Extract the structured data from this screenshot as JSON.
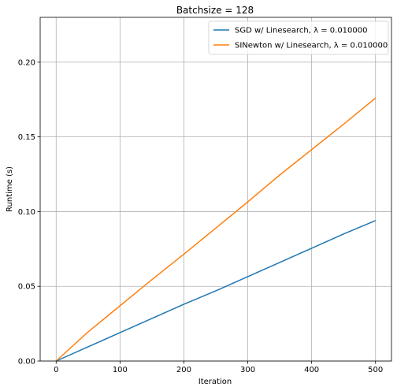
{
  "chart_data": {
    "type": "line",
    "title": "Batchsize = 128",
    "xlabel": "Iteration",
    "ylabel": "Runtime (s)",
    "xlim": [
      -25,
      525
    ],
    "ylim": [
      0.0,
      0.23
    ],
    "xticks": [
      0,
      100,
      200,
      300,
      400,
      500
    ],
    "yticks": [
      0.0,
      0.05,
      0.1,
      0.15,
      0.2
    ],
    "xtick_labels": [
      "0",
      "100",
      "200",
      "300",
      "400",
      "500"
    ],
    "ytick_labels": [
      "0.00",
      "0.05",
      "0.10",
      "0.15",
      "0.20"
    ],
    "grid": true,
    "legend_position": "top-right",
    "x": [
      0,
      50,
      100,
      150,
      200,
      250,
      300,
      350,
      400,
      450,
      500
    ],
    "series": [
      {
        "name": "SGD w/ Linesearch, λ = 0.010000",
        "color": "#1f77b4",
        "values": [
          0.0,
          0.0095,
          0.019,
          0.0285,
          0.038,
          0.047,
          0.0565,
          0.066,
          0.0755,
          0.085,
          0.094
        ]
      },
      {
        "name": "SINewton w/ Linesearch, λ = 0.010000",
        "color": "#ff7f0e",
        "values": [
          0.0,
          0.0195,
          0.037,
          0.0545,
          0.0715,
          0.089,
          0.1065,
          0.1245,
          0.1415,
          0.1585,
          0.176
        ]
      }
    ]
  }
}
